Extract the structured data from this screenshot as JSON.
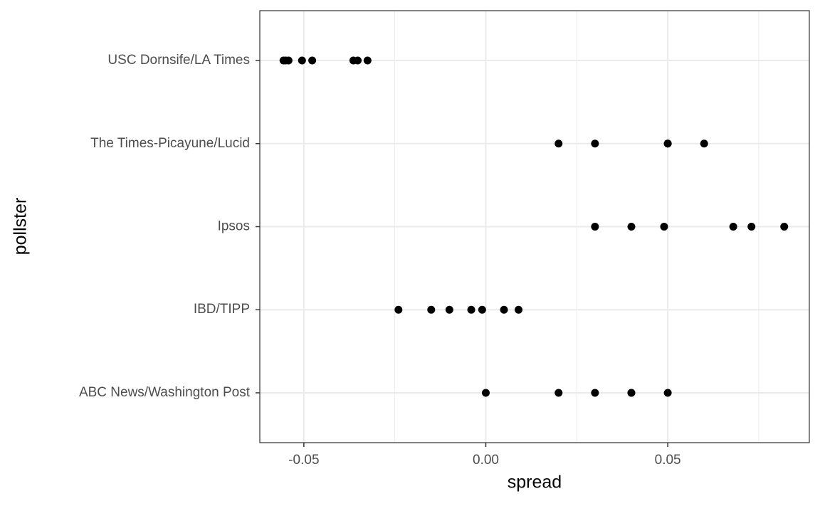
{
  "chart_data": {
    "type": "strip",
    "x_label": "spread",
    "y_label": "pollster",
    "categories": [
      "ABC News/Washington Post",
      "IBD/TIPP",
      "Ipsos",
      "The Times-Picayune/Lucid",
      "USC Dornsife/LA Times"
    ],
    "values": [
      [
        0,
        0.02,
        0.03,
        0.04,
        0.04,
        0.05
      ],
      [
        -0.024,
        -0.015,
        -0.01,
        -0.004,
        -0.001,
        0.005,
        0.009
      ],
      [
        0.03,
        0.04,
        0.049,
        0.068,
        0.073,
        0.082
      ],
      [
        0.02,
        0.03,
        0.05,
        0.05,
        0.06
      ],
      [
        -0.0556,
        -0.055,
        -0.0542,
        -0.0505,
        -0.0477,
        -0.0364,
        -0.0352,
        -0.0325
      ]
    ],
    "color": "#000000",
    "xlim": [
      -0.0621,
      0.0889
    ],
    "xticks": [
      -0.05,
      {
        "value": 0,
        "label": "0.00"
      },
      0.05
    ],
    "x_minor_ticks": [
      -0.025,
      0.025,
      0.075
    ],
    "grid": true
  }
}
